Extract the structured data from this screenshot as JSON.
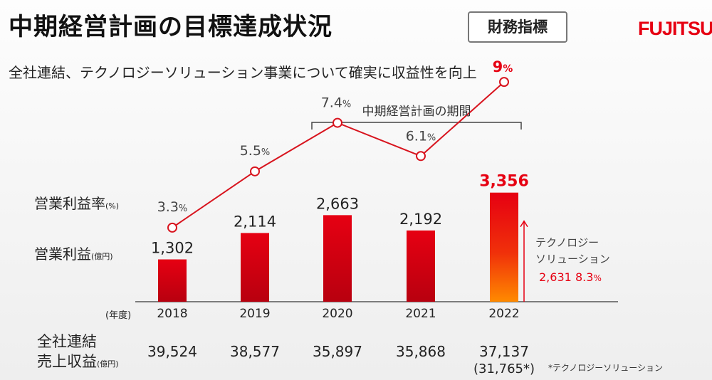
{
  "header": {
    "title": "中期経営計画の目標達成状況",
    "badge": "財務指標",
    "logo": "FUJITSU",
    "subtitle": "全社連結、テクノロジーソリューション事業について確実に収益性を向上"
  },
  "row_labels": {
    "margin": "営業利益率",
    "margin_unit": "(%)",
    "profit": "営業利益",
    "profit_unit": "(億円)",
    "year_unit": "(年度)",
    "revenue_line1": "全社連結",
    "revenue_line2": "売上収益",
    "revenue_unit": "(億円)"
  },
  "chart_data": {
    "type": "bar",
    "categories": [
      "2018",
      "2019",
      "2020",
      "2021",
      "2022"
    ],
    "series": [
      {
        "name": "営業利益",
        "unit": "億円",
        "values": [
          1302,
          2114,
          2663,
          2192,
          3356
        ],
        "labels": [
          "1,302",
          "2,114",
          "2,663",
          "2,192",
          "3,356"
        ]
      },
      {
        "name": "営業利益率",
        "unit": "%",
        "type": "line",
        "values": [
          3.3,
          5.5,
          7.4,
          6.1,
          9
        ],
        "labels": [
          "3.3",
          "5.5",
          "7.4",
          "6.1",
          "9"
        ]
      }
    ],
    "revenue": {
      "name": "全社連結 売上収益",
      "unit": "億円",
      "labels": [
        "39,524",
        "38,577",
        "35,897",
        "35,868",
        "37,137"
      ]
    },
    "revenue_note": "(31,765*)",
    "period_label": "中期経営計画の期間",
    "period_range": [
      "2020",
      "2022"
    ],
    "tech_annotation": {
      "line1": "テクノロジー",
      "line2": "ソリューション",
      "profit": "2,631",
      "margin": "8.3",
      "margin_unit": "%"
    },
    "footnote": "*テクノロジーソリューション",
    "colors": {
      "bar": "#e60012",
      "bar_dark": "#c00010",
      "line": "#d8141e",
      "highlight": "#e60012",
      "bar_2022_bottom": "#ff8a00"
    }
  }
}
